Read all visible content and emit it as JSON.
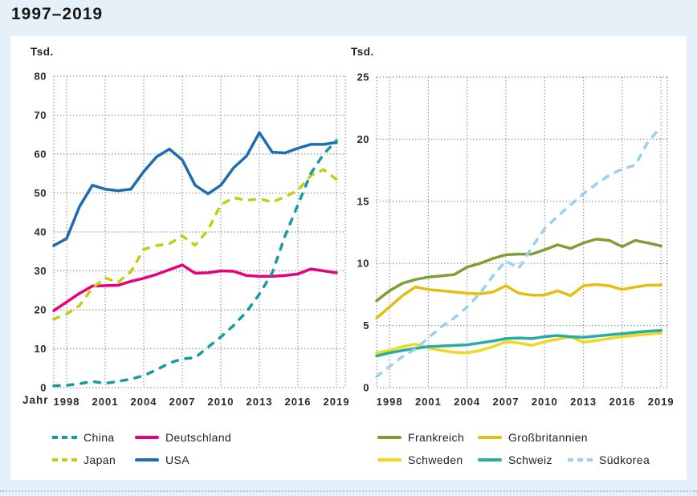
{
  "title": "1997–2019",
  "chart_data": [
    {
      "type": "line",
      "ylabel": "Tsd.",
      "xlabel": "Jahr",
      "x": [
        1997,
        1998,
        1999,
        2000,
        2001,
        2002,
        2003,
        2004,
        2005,
        2006,
        2007,
        2008,
        2009,
        2010,
        2011,
        2012,
        2013,
        2014,
        2015,
        2016,
        2017,
        2018,
        2019
      ],
      "xticks": [
        1998,
        2001,
        2004,
        2007,
        2010,
        2013,
        2016,
        2019
      ],
      "ylim": [
        0,
        80
      ],
      "ytick_step": 10,
      "grid": "dotted",
      "legend_position": "below",
      "series": [
        {
          "name": "China",
          "color": "#189b9e",
          "dashed": true,
          "values": [
            0.5,
            0.6,
            1.0,
            1.6,
            1.1,
            1.6,
            2.2,
            3.1,
            4.6,
            6.3,
            7.4,
            7.7,
            10.4,
            13.0,
            16.0,
            19.5,
            24.0,
            29.5,
            39.0,
            47.0,
            55.0,
            60.0,
            63.5
          ]
        },
        {
          "name": "Deutschland",
          "color": "#e6007e",
          "dashed": false,
          "values": [
            19.8,
            22.0,
            24.2,
            26.1,
            26.2,
            26.3,
            27.3,
            28.1,
            29.1,
            30.3,
            31.5,
            29.4,
            29.5,
            30.0,
            29.9,
            28.8,
            28.6,
            28.6,
            28.8,
            29.2,
            30.5,
            30.0,
            29.5
          ]
        },
        {
          "name": "Japan",
          "color": "#c0cf14",
          "dashed": true,
          "values": [
            17.6,
            18.9,
            21.1,
            25.6,
            28.2,
            27.1,
            29.8,
            35.5,
            36.5,
            37.0,
            39.0,
            36.6,
            40.5,
            47.0,
            48.8,
            48.1,
            48.5,
            47.7,
            49.0,
            50.7,
            54.5,
            56.0,
            53.5
          ]
        },
        {
          "name": "USA",
          "color": "#1e6cb2",
          "dashed": false,
          "values": [
            36.5,
            38.3,
            46.5,
            52.0,
            51.0,
            50.6,
            51.0,
            55.5,
            59.3,
            61.3,
            58.5,
            52.0,
            49.8,
            52.0,
            56.5,
            59.5,
            65.5,
            60.5,
            60.3,
            61.5,
            62.5,
            62.5,
            63.0
          ]
        }
      ]
    },
    {
      "type": "line",
      "ylabel": "Tsd.",
      "xlabel": "",
      "x": [
        1997,
        1998,
        1999,
        2000,
        2001,
        2002,
        2003,
        2004,
        2005,
        2006,
        2007,
        2008,
        2009,
        2010,
        2011,
        2012,
        2013,
        2014,
        2015,
        2016,
        2017,
        2018,
        2019
      ],
      "xticks": [
        1998,
        2001,
        2004,
        2007,
        2010,
        2013,
        2016,
        2019
      ],
      "ylim": [
        0,
        25
      ],
      "ytick_step": 5,
      "grid": "dotted",
      "legend_position": "below",
      "series": [
        {
          "name": "Frankreich",
          "color": "#7f9e33",
          "dashed": false,
          "values": [
            7.0,
            7.8,
            8.4,
            8.7,
            8.9,
            9.0,
            9.1,
            9.7,
            10.0,
            10.4,
            10.7,
            10.75,
            10.75,
            11.1,
            11.5,
            11.2,
            11.65,
            11.95,
            11.85,
            11.35,
            11.85,
            11.65,
            11.4
          ]
        },
        {
          "name": "Großbritannien",
          "color": "#e6be12",
          "dashed": false,
          "values": [
            5.6,
            6.5,
            7.4,
            8.1,
            7.9,
            7.8,
            7.7,
            7.6,
            7.55,
            7.7,
            8.2,
            7.6,
            7.45,
            7.45,
            7.8,
            7.4,
            8.2,
            8.3,
            8.2,
            7.9,
            8.1,
            8.25,
            8.25
          ]
        },
        {
          "name": "Schweden",
          "color": "#efd820",
          "dashed": false,
          "values": [
            2.8,
            3.0,
            3.3,
            3.5,
            3.2,
            3.0,
            2.85,
            2.8,
            3.0,
            3.3,
            3.7,
            3.6,
            3.4,
            3.7,
            3.9,
            4.1,
            3.65,
            3.8,
            3.95,
            4.1,
            4.2,
            4.3,
            4.4
          ]
        },
        {
          "name": "Schweiz",
          "color": "#27ada3",
          "dashed": false,
          "values": [
            2.55,
            2.8,
            3.0,
            3.15,
            3.3,
            3.35,
            3.4,
            3.45,
            3.6,
            3.75,
            3.95,
            4.0,
            3.95,
            4.1,
            4.2,
            4.1,
            4.05,
            4.15,
            4.25,
            4.35,
            4.45,
            4.55,
            4.6
          ]
        },
        {
          "name": "Südkorea",
          "color": "#9ad0ee",
          "dashed": true,
          "values": [
            0.9,
            1.7,
            2.5,
            3.1,
            4.0,
            4.9,
            5.6,
            6.5,
            7.6,
            9.0,
            10.2,
            9.6,
            11.3,
            12.8,
            13.8,
            14.7,
            15.6,
            16.4,
            17.1,
            17.6,
            17.9,
            19.8,
            21.0
          ]
        }
      ]
    }
  ]
}
